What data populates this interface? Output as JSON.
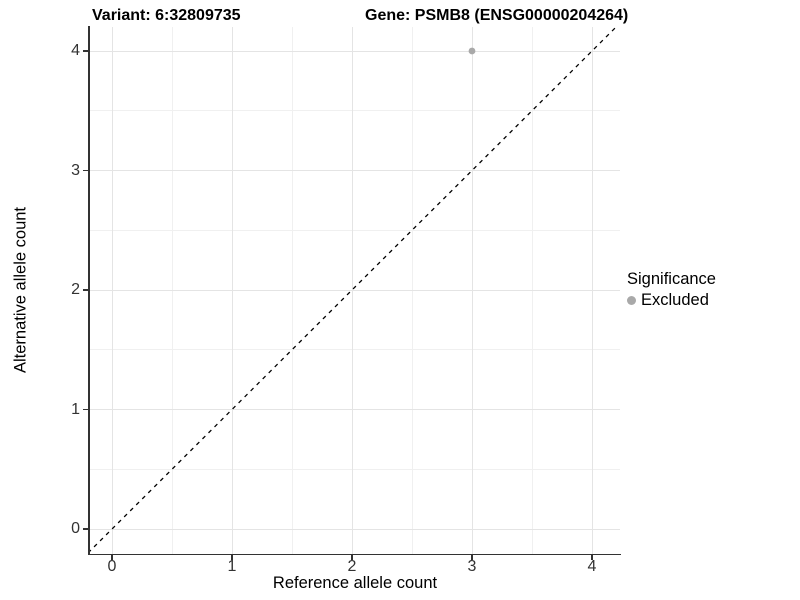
{
  "titles": {
    "variant": "Variant: 6:32809735",
    "gene": "Gene: PSMB8 (ENSG00000204264)"
  },
  "chart_data": {
    "type": "scatter",
    "title_left": "Variant: 6:32809735",
    "title_right": "Gene: PSMB8 (ENSG00000204264)",
    "xlabel": "Reference allele count",
    "ylabel": "Alternative allele count",
    "xlim": [
      -0.2,
      4.2
    ],
    "ylim": [
      -0.2,
      4.2
    ],
    "x_ticks": [
      0,
      1,
      2,
      3,
      4
    ],
    "y_ticks": [
      0,
      1,
      2,
      3,
      4
    ],
    "grid": "major+minor",
    "points": [
      {
        "x": 3,
        "y": 4,
        "series": "Excluded"
      }
    ],
    "reference_line": {
      "kind": "identity",
      "slope": 1,
      "intercept": 0,
      "style": "dashed",
      "color": "#000000"
    },
    "legend": {
      "title": "Significance",
      "position": "right",
      "entries": [
        {
          "label": "Excluded",
          "color": "#a9a9a9",
          "marker": "circle"
        }
      ]
    }
  },
  "colors": {
    "background": "#ffffff",
    "grid_major": "#e4e4e4",
    "grid_minor": "#f0f0f0",
    "axis_line": "#333333",
    "tick_label": "#333333",
    "point": "#a9a9a9",
    "dashed_line": "#000000"
  }
}
